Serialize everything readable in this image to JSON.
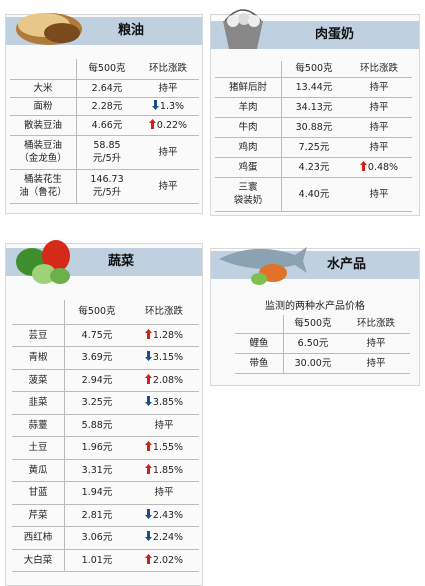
{
  "panels": [
    {
      "title": "粮油",
      "columns": [
        "每500克",
        "环比涨跌"
      ],
      "rows": [
        {
          "name": "大米",
          "price": "2.64元",
          "change": "持平"
        },
        {
          "name": "面粉",
          "price": "2.28元",
          "change": "1.3%",
          "arrow": "down"
        },
        {
          "name": "散装豆油",
          "price": "4.66元",
          "change": "0.22%",
          "arrow": "up"
        },
        {
          "name": "桶装豆油\n（金龙鱼）",
          "price": "58.85\n元/5升",
          "change": "持平"
        },
        {
          "name": "桶装花生\n油（鲁花）",
          "price": "146.73\n元/5升",
          "change": "持平"
        }
      ]
    },
    {
      "title": "肉蛋奶",
      "columns": [
        "每500克",
        "环比涨跌"
      ],
      "rows": [
        {
          "name": "猪鲜后肘",
          "price": "13.44元",
          "change": "持平"
        },
        {
          "name": "羊肉",
          "price": "34.13元",
          "change": "持平"
        },
        {
          "name": "牛肉",
          "price": "30.88元",
          "change": "持平"
        },
        {
          "name": "鸡肉",
          "price": "7.25元",
          "change": "持平"
        },
        {
          "name": "鸡蛋",
          "price": "4.23元",
          "change": "0.48%",
          "arrow": "up"
        },
        {
          "name": "三寰\n袋装奶",
          "price": "4.40元",
          "change": "持平"
        }
      ]
    },
    {
      "title": "蔬菜",
      "columns": [
        "每500克",
        "环比涨跌"
      ],
      "rows": [
        {
          "name": "芸豆",
          "price": "4.75元",
          "change": "1.28%",
          "arrow": "up"
        },
        {
          "name": "青椒",
          "price": "3.69元",
          "change": "3.15%",
          "arrow": "down"
        },
        {
          "name": "菠菜",
          "price": "2.94元",
          "change": "2.08%",
          "arrow": "up"
        },
        {
          "name": "韭菜",
          "price": "3.25元",
          "change": "3.85%",
          "arrow": "down"
        },
        {
          "name": "蒜薹",
          "price": "5.88元",
          "change": "持平"
        },
        {
          "name": "土豆",
          "price": "1.96元",
          "change": "1.55%",
          "arrow": "up"
        },
        {
          "name": "黄瓜",
          "price": "3.31元",
          "change": "1.85%",
          "arrow": "up"
        },
        {
          "name": "甘蓝",
          "price": "1.94元",
          "change": "持平"
        },
        {
          "name": "芹菜",
          "price": "2.81元",
          "change": "2.43%",
          "arrow": "down"
        },
        {
          "name": "西红柿",
          "price": "3.06元",
          "change": "2.24%",
          "arrow": "down"
        },
        {
          "name": "大白菜",
          "price": "1.01元",
          "change": "2.02%",
          "arrow": "up"
        }
      ]
    },
    {
      "title": "水产品",
      "subtitle": "监测的两种水产品价格",
      "columns": [
        "每500克",
        "环比涨跌"
      ],
      "rows": [
        {
          "name": "鲤鱼",
          "price": "6.50元",
          "change": "持平"
        },
        {
          "name": "带鱼",
          "price": "30.00元",
          "change": "持平"
        }
      ]
    }
  ]
}
